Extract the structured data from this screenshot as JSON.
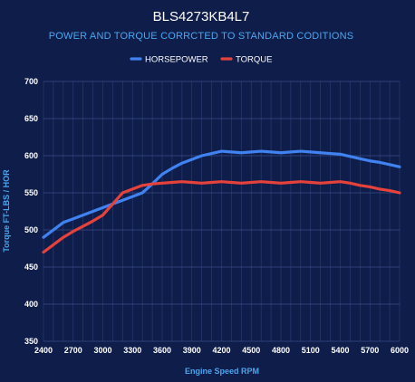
{
  "chart_data": {
    "type": "line",
    "title": "BLS4273KB4L7",
    "subtitle": "POWER AND TORQUE CORRCTED TO STANDARD CODITIONS",
    "xlabel": "Engine Speed RPM",
    "ylabel": "Torque FT-LBS / HOR",
    "xlim": [
      2400,
      6000
    ],
    "ylim": [
      350,
      700
    ],
    "x_ticks": [
      "2400",
      "2700",
      "3000",
      "3300",
      "3600",
      "3900",
      "4200",
      "4500",
      "4800",
      "5100",
      "5400",
      "5700",
      "6000"
    ],
    "y_ticks": [
      "350",
      "400",
      "450",
      "500",
      "550",
      "600",
      "650",
      "700"
    ],
    "grid": true,
    "legend": "top-center",
    "x": [
      2400,
      2500,
      2600,
      2700,
      2800,
      2900,
      3000,
      3100,
      3200,
      3300,
      3400,
      3500,
      3600,
      3700,
      3800,
      3900,
      4000,
      4100,
      4200,
      4300,
      4400,
      4500,
      4600,
      4700,
      4800,
      4900,
      5000,
      5100,
      5200,
      5300,
      5400,
      5500,
      5600,
      5700,
      5800,
      5900,
      6000
    ],
    "series": [
      {
        "name": "HORSEPOWER",
        "color": "#3f82f0",
        "values": [
          490,
          500,
          510,
          515,
          520,
          525,
          530,
          535,
          540,
          545,
          550,
          562,
          575,
          583,
          590,
          595,
          600,
          603,
          606,
          605,
          604,
          605,
          606,
          605,
          604,
          605,
          606,
          605,
          604,
          603,
          602,
          599,
          596,
          593,
          591,
          588,
          585
        ]
      },
      {
        "name": "TORQUE",
        "color": "#e5423b",
        "values": [
          470,
          480,
          490,
          498,
          505,
          512,
          520,
          535,
          550,
          555,
          560,
          562,
          563,
          564,
          565,
          564,
          563,
          564,
          565,
          564,
          563,
          564,
          565,
          564,
          563,
          564,
          565,
          564,
          563,
          564,
          565,
          563,
          560,
          558,
          555,
          553,
          550
        ]
      }
    ]
  }
}
